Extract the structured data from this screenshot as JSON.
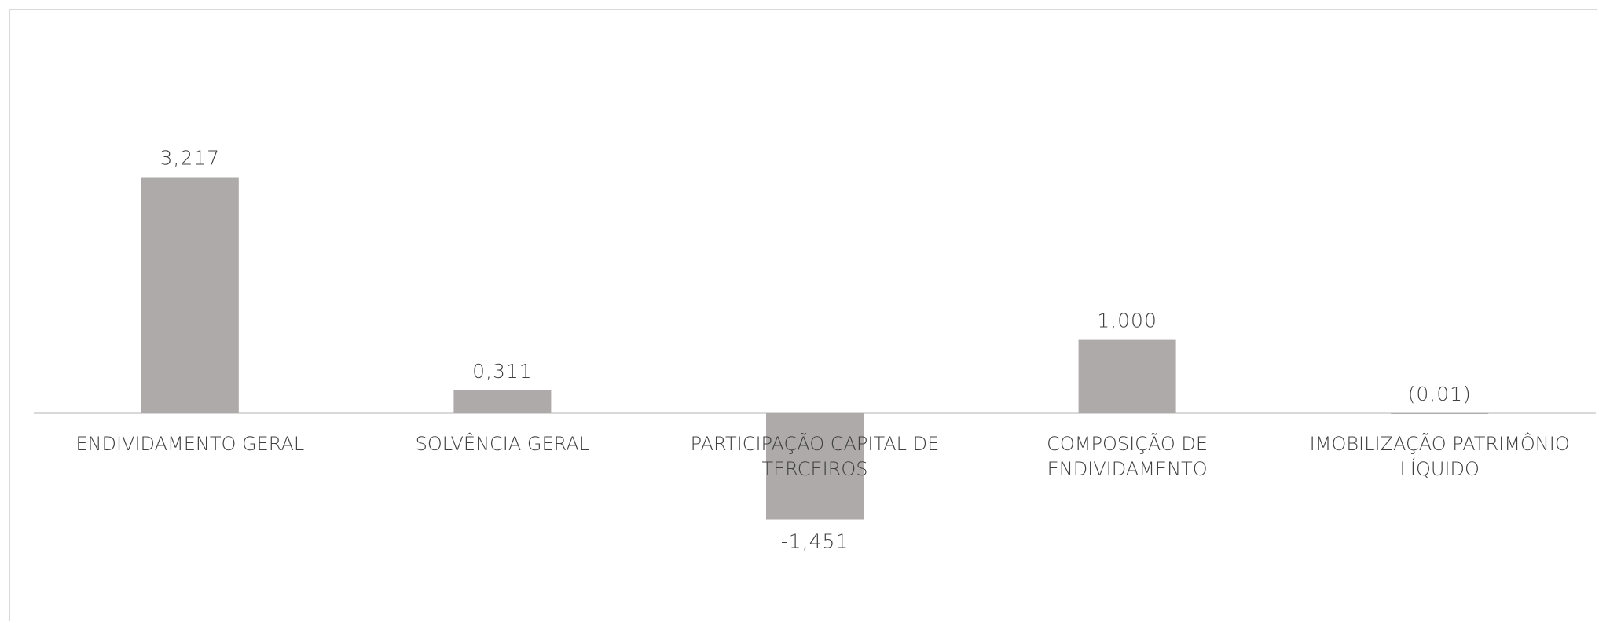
{
  "chart_data": {
    "type": "bar",
    "categories": [
      [
        "ENDIVIDAMENTO GERAL"
      ],
      [
        "SOLVÊNCIA GERAL"
      ],
      [
        "PARTICIPAÇÃO CAPITAL DE",
        "TERCEIROS"
      ],
      [
        "COMPOSIÇÃO DE",
        "ENDIVIDAMENTO"
      ],
      [
        "IMOBILIZAÇÃO PATRIMÔNIO",
        "LÍQUIDO"
      ]
    ],
    "values": [
      3.217,
      0.311,
      -1.451,
      1.0,
      -0.01
    ],
    "data_labels": [
      "3,217",
      "0,311",
      "-1,451",
      "1,000",
      "(0,01)"
    ],
    "title": "",
    "xlabel": "",
    "ylabel": "",
    "ylim": [
      -1.8,
      3.6
    ],
    "grid": false,
    "legend": "none",
    "colors": {
      "bar": "#aeaaaa",
      "axis": "#d9d9d9",
      "text": "#404040"
    }
  }
}
